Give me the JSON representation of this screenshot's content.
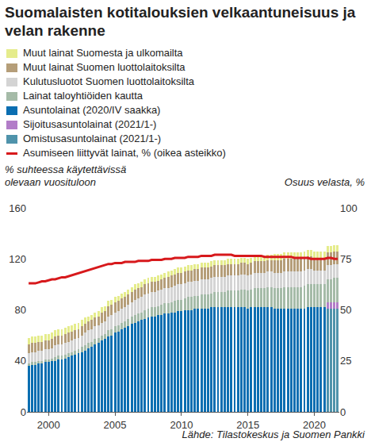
{
  "chart_data": {
    "type": "bar",
    "title": "Suomalaisten kotitalouksien velkaantuneisuus ja velan rakenne",
    "y_label": "% suhteessa käytettävissä olevaan vuosituloon",
    "y2_label": "Osuus velasta, %",
    "source": "Lähde: Tilastokeskus ja Suomen Pankki",
    "stacked": true,
    "grid": false,
    "ylim": [
      0,
      160
    ],
    "yticks": [
      0,
      40,
      80,
      120,
      160
    ],
    "y2lim": [
      0,
      100
    ],
    "y2ticks": [
      0,
      25,
      50,
      75,
      100
    ],
    "categories": [
      null,
      null,
      null,
      null,
      null,
      null,
      "2000",
      null,
      null,
      null,
      null,
      null,
      null,
      null,
      null,
      null,
      null,
      null,
      null,
      null,
      null,
      null,
      null,
      null,
      null,
      null,
      "2005",
      null,
      null,
      null,
      null,
      null,
      null,
      null,
      null,
      null,
      null,
      null,
      null,
      null,
      null,
      null,
      null,
      null,
      null,
      null,
      "2010",
      null,
      null,
      null,
      null,
      null,
      null,
      null,
      null,
      null,
      null,
      null,
      null,
      null,
      null,
      null,
      null,
      null,
      null,
      null,
      "2015",
      null,
      null,
      null,
      null,
      null,
      null,
      null,
      null,
      null,
      null,
      null,
      null,
      null,
      null,
      null,
      null,
      null,
      null,
      null,
      "2020",
      null,
      null,
      null,
      null,
      null,
      null,
      null
    ],
    "series": [
      {
        "name": "Omistusasuntolainat (2021/1-)",
        "color": "#4f93ab",
        "values": [
          null,
          null,
          null,
          null,
          null,
          null,
          null,
          null,
          null,
          null,
          null,
          null,
          null,
          null,
          null,
          null,
          null,
          null,
          null,
          null,
          null,
          null,
          null,
          null,
          null,
          null,
          null,
          null,
          null,
          null,
          null,
          null,
          null,
          null,
          null,
          null,
          null,
          null,
          null,
          null,
          null,
          null,
          null,
          null,
          null,
          null,
          null,
          null,
          null,
          null,
          null,
          null,
          null,
          null,
          null,
          null,
          null,
          null,
          null,
          null,
          null,
          null,
          null,
          null,
          null,
          null,
          null,
          null,
          null,
          null,
          null,
          null,
          null,
          null,
          null,
          null,
          null,
          null,
          null,
          null,
          null,
          null,
          null,
          null,
          null,
          null,
          null,
          null,
          null,
          null,
          81,
          81,
          81,
          81
        ]
      },
      {
        "name": "Sijoitusasuntolainat (2021/1-)",
        "color": "#b27dc8",
        "values": [
          null,
          null,
          null,
          null,
          null,
          null,
          null,
          null,
          null,
          null,
          null,
          null,
          null,
          null,
          null,
          null,
          null,
          null,
          null,
          null,
          null,
          null,
          null,
          null,
          null,
          null,
          null,
          null,
          null,
          null,
          null,
          null,
          null,
          null,
          null,
          null,
          null,
          null,
          null,
          null,
          null,
          null,
          null,
          null,
          null,
          null,
          null,
          null,
          null,
          null,
          null,
          null,
          null,
          null,
          null,
          null,
          null,
          null,
          null,
          null,
          null,
          null,
          null,
          null,
          null,
          null,
          null,
          null,
          null,
          null,
          null,
          null,
          null,
          null,
          null,
          null,
          null,
          null,
          null,
          null,
          null,
          null,
          null,
          null,
          null,
          null,
          null,
          null,
          null,
          null,
          5,
          5,
          5,
          5
        ]
      },
      {
        "name": "Asuntolainat (2020/IV saakka)",
        "color": "#0b6eb1",
        "values": [
          36,
          37,
          37,
          38,
          38,
          39,
          39,
          40,
          40,
          41,
          41,
          42,
          43,
          44,
          45,
          46,
          47,
          48,
          50,
          51,
          53,
          54,
          56,
          57,
          59,
          60,
          62,
          63,
          65,
          66,
          67,
          69,
          70,
          71,
          72,
          73,
          74,
          75,
          75,
          76,
          76,
          77,
          77,
          78,
          78,
          79,
          79,
          80,
          80,
          80,
          81,
          81,
          81,
          81,
          81,
          82,
          82,
          82,
          82,
          82,
          82,
          82,
          82,
          82,
          82,
          82,
          81,
          82,
          82,
          82,
          82,
          82,
          82,
          82,
          81,
          81,
          81,
          81,
          81,
          81,
          81,
          81,
          81,
          81,
          82,
          82,
          82,
          82,
          82,
          82,
          null,
          null,
          null,
          null
        ]
      },
      {
        "name": "Lainat taloyhtiöiden kautta",
        "color": "#a5bba8",
        "values": [
          2,
          2,
          2,
          2,
          2,
          2,
          2,
          2,
          3,
          3,
          3,
          3,
          3,
          3,
          3,
          3,
          4,
          4,
          4,
          4,
          4,
          4,
          4,
          4,
          5,
          5,
          5,
          5,
          5,
          5,
          6,
          6,
          6,
          6,
          6,
          7,
          7,
          7,
          7,
          7,
          8,
          8,
          8,
          8,
          9,
          9,
          9,
          9,
          10,
          10,
          10,
          10,
          11,
          11,
          11,
          11,
          12,
          12,
          12,
          12,
          13,
          13,
          13,
          13,
          14,
          14,
          14,
          14,
          15,
          15,
          15,
          15,
          16,
          16,
          16,
          16,
          16,
          17,
          17,
          17,
          17,
          17,
          17,
          18,
          18,
          18,
          18,
          18,
          18,
          18,
          18,
          18,
          19,
          19
        ]
      },
      {
        "name": "Kulutusluotot Suomen luottolaitoksilta",
        "color": "#d4d4d4",
        "values": [
          8,
          8,
          8,
          8,
          8,
          8,
          8,
          8,
          9,
          9,
          9,
          9,
          9,
          9,
          9,
          9,
          9,
          10,
          10,
          10,
          10,
          10,
          10,
          10,
          11,
          11,
          11,
          11,
          11,
          11,
          11,
          11,
          12,
          12,
          12,
          12,
          12,
          12,
          12,
          12,
          12,
          12,
          12,
          12,
          12,
          12,
          12,
          12,
          12,
          12,
          12,
          12,
          12,
          12,
          12,
          12,
          12,
          12,
          12,
          12,
          12,
          12,
          12,
          12,
          12,
          12,
          12,
          12,
          12,
          12,
          12,
          12,
          12,
          12,
          12,
          12,
          12,
          12,
          12,
          12,
          12,
          12,
          12,
          12,
          12,
          12,
          11,
          11,
          11,
          11,
          11,
          11,
          11,
          11
        ]
      },
      {
        "name": "Muut lainat Suomen luottolaitoksilta",
        "color": "#b59e79",
        "values": [
          7,
          7,
          7,
          7,
          7,
          7,
          7,
          7,
          7,
          7,
          7,
          7,
          7,
          7,
          7,
          7,
          7,
          7,
          7,
          7,
          7,
          7,
          8,
          8,
          8,
          8,
          8,
          8,
          8,
          8,
          8,
          8,
          8,
          8,
          8,
          8,
          8,
          8,
          8,
          8,
          8,
          8,
          9,
          9,
          9,
          9,
          9,
          9,
          9,
          9,
          9,
          9,
          9,
          9,
          9,
          9,
          9,
          9,
          9,
          9,
          9,
          9,
          9,
          9,
          9,
          9,
          9,
          9,
          9,
          9,
          9,
          9,
          9,
          9,
          10,
          10,
          10,
          10,
          10,
          10,
          10,
          10,
          10,
          10,
          10,
          10,
          10,
          10,
          10,
          10,
          10,
          10,
          10,
          10
        ]
      },
      {
        "name": "Muut lainat Suomesta ja ulkomailta",
        "color": "#e5ec8c",
        "values": [
          5,
          5,
          5,
          5,
          5,
          5,
          5,
          5,
          5,
          5,
          5,
          5,
          5,
          5,
          5,
          5,
          5,
          5,
          4,
          4,
          4,
          4,
          4,
          4,
          4,
          4,
          4,
          4,
          4,
          4,
          4,
          4,
          4,
          4,
          4,
          4,
          4,
          4,
          4,
          4,
          4,
          4,
          4,
          4,
          4,
          4,
          4,
          4,
          4,
          4,
          4,
          4,
          4,
          4,
          4,
          4,
          4,
          4,
          4,
          4,
          4,
          4,
          4,
          4,
          4,
          4,
          4,
          4,
          4,
          4,
          4,
          4,
          4,
          4,
          5,
          5,
          5,
          5,
          5,
          5,
          5,
          5,
          5,
          5,
          5,
          5,
          5,
          5,
          5,
          5,
          5,
          5,
          5,
          5
        ]
      },
      {
        "name": "Asumiseen liittyvät lainat, % (oikea asteikko)",
        "color": "#d7191c",
        "type": "line",
        "axis": "y2",
        "values": [
          63,
          63,
          63,
          63.5,
          64,
          64,
          64.5,
          65,
          65,
          65.5,
          66,
          66,
          66.5,
          67,
          67.5,
          68,
          68.5,
          69,
          69.5,
          70,
          70.5,
          71,
          71.5,
          72,
          72.5,
          72.5,
          73,
          73,
          73,
          73.5,
          73.5,
          73.5,
          73.5,
          74,
          74,
          74,
          74,
          74.5,
          74.5,
          74.5,
          74.5,
          75,
          75,
          75,
          75.5,
          75.5,
          75.5,
          75.5,
          76,
          76,
          76,
          76,
          76.5,
          76.5,
          76.5,
          76.5,
          77,
          77,
          77,
          77,
          77,
          77,
          76.5,
          76.5,
          76.5,
          76.5,
          76.5,
          76.5,
          76.5,
          76.5,
          76.5,
          76,
          76,
          76,
          76,
          76,
          76,
          76,
          76,
          76,
          75.5,
          75.5,
          75.5,
          75.5,
          75.5,
          75,
          75,
          75,
          75,
          75,
          75.5,
          75.5,
          75,
          75
        ]
      }
    ]
  }
}
